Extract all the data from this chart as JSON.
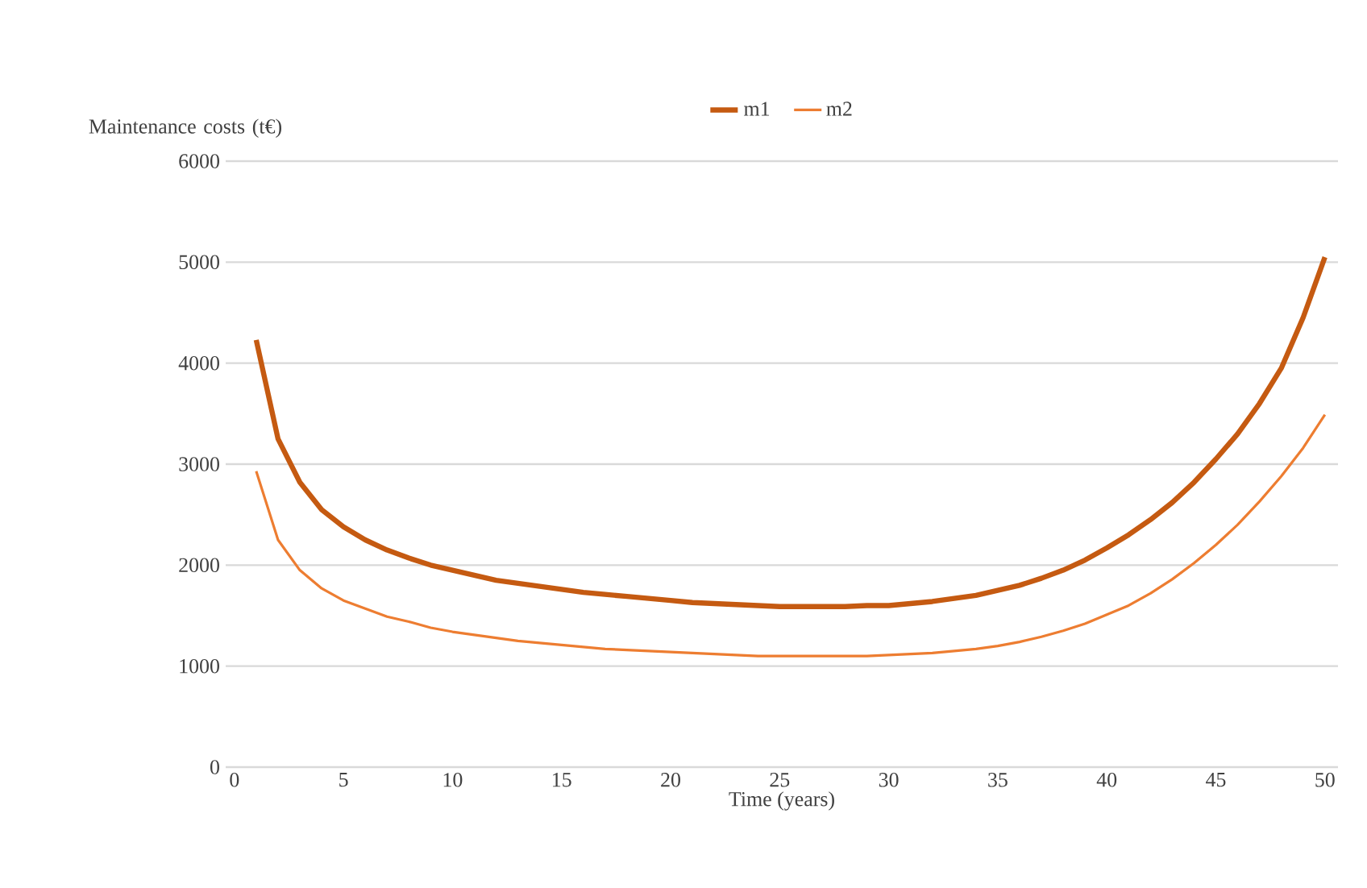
{
  "chart_data": {
    "type": "line",
    "xlabel": "Time (years)",
    "ylabel": "Maintenance costs (t€)",
    "x": [
      1,
      2,
      3,
      4,
      5,
      6,
      7,
      8,
      9,
      10,
      11,
      12,
      13,
      14,
      15,
      16,
      17,
      18,
      19,
      20,
      21,
      22,
      23,
      24,
      25,
      26,
      27,
      28,
      29,
      30,
      31,
      32,
      33,
      34,
      35,
      36,
      37,
      38,
      39,
      40,
      41,
      42,
      43,
      44,
      45,
      46,
      47,
      48,
      49,
      50
    ],
    "series": [
      {
        "name": "m1",
        "color": "#c55a11",
        "values": [
          4230,
          3250,
          2820,
          2550,
          2380,
          2250,
          2150,
          2070,
          2000,
          1950,
          1900,
          1850,
          1820,
          1790,
          1760,
          1730,
          1710,
          1690,
          1670,
          1650,
          1630,
          1620,
          1610,
          1600,
          1590,
          1590,
          1590,
          1590,
          1600,
          1600,
          1620,
          1640,
          1670,
          1700,
          1750,
          1800,
          1870,
          1950,
          2050,
          2170,
          2300,
          2450,
          2620,
          2820,
          3050,
          3300,
          3600,
          3950,
          4450,
          5050
        ]
      },
      {
        "name": "m2",
        "color": "#ed7d31",
        "values": [
          2930,
          2250,
          1950,
          1770,
          1650,
          1570,
          1490,
          1440,
          1380,
          1340,
          1310,
          1280,
          1250,
          1230,
          1210,
          1190,
          1170,
          1160,
          1150,
          1140,
          1130,
          1120,
          1110,
          1100,
          1100,
          1100,
          1100,
          1100,
          1100,
          1110,
          1120,
          1130,
          1150,
          1170,
          1200,
          1240,
          1290,
          1350,
          1420,
          1510,
          1600,
          1720,
          1860,
          2020,
          2200,
          2400,
          2630,
          2880,
          3160,
          3490
        ]
      }
    ],
    "xlim": [
      -0.4,
      50.6
    ],
    "ylim": [
      0,
      6000
    ],
    "xticks": [
      0,
      5,
      10,
      15,
      20,
      25,
      30,
      35,
      40,
      45,
      50
    ],
    "yticks": [
      0,
      1000,
      2000,
      3000,
      4000,
      5000,
      6000
    ],
    "grid": "y",
    "legend": "top",
    "marker": "none",
    "line_style": "solid"
  }
}
